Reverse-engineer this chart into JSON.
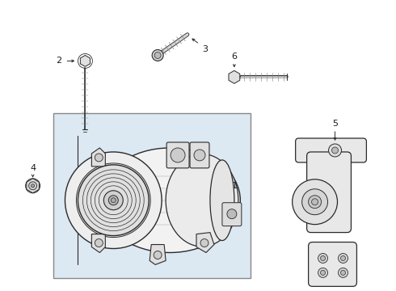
{
  "background_color": "#ffffff",
  "line_color": "#2a2a2a",
  "box_bg": "#dce8f2",
  "fig_width": 4.9,
  "fig_height": 3.6,
  "dpi": 100
}
